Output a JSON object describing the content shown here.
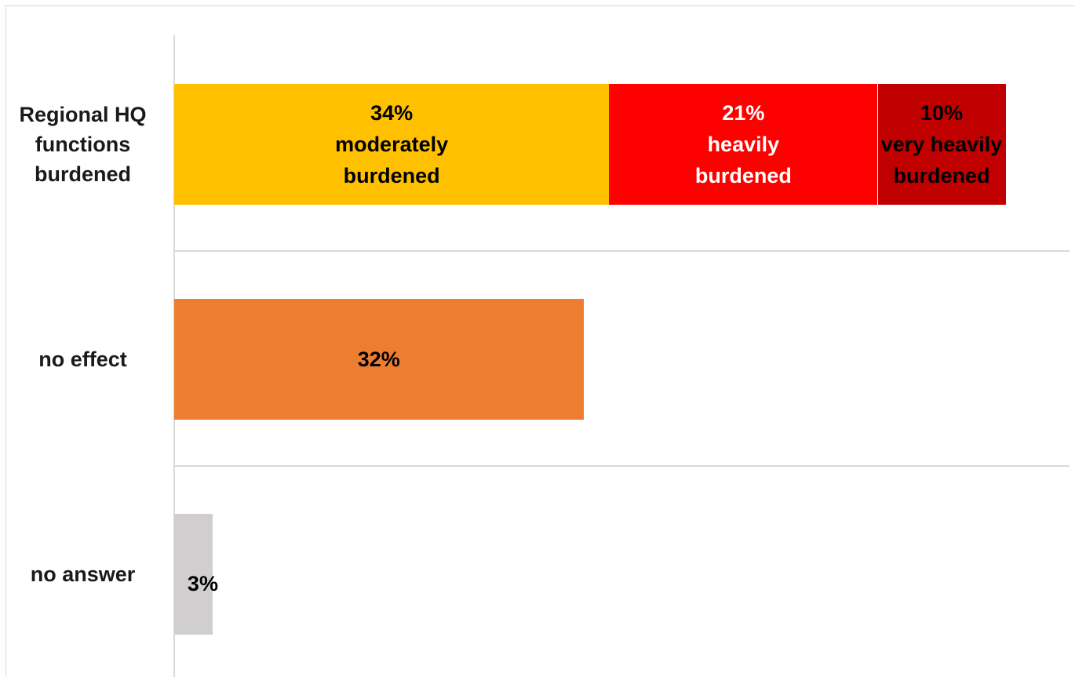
{
  "chart_data": {
    "type": "bar",
    "orientation": "horizontal",
    "stacked": true,
    "categories": [
      "Regional HQ functions burdened",
      "no effect",
      "no answer"
    ],
    "series": [
      {
        "name": "moderately burdened",
        "color": "#ffc000",
        "label_color": "#000000",
        "values": [
          34,
          null,
          null
        ],
        "value_labels": [
          "34%",
          null,
          null
        ]
      },
      {
        "name": "heavily burdened",
        "color": "#ff0000",
        "label_color": "#ffffff",
        "values": [
          21,
          null,
          null
        ],
        "value_labels": [
          "21%",
          null,
          null
        ]
      },
      {
        "name": "very heavily burdened",
        "color": "#c00000",
        "label_color": "#000000",
        "values": [
          10,
          null,
          null
        ],
        "value_labels": [
          "10%",
          null,
          null
        ]
      },
      {
        "color": "#ed7d31",
        "label_color": "#000000",
        "values": [
          null,
          32,
          null
        ],
        "value_labels": [
          null,
          "32%",
          null
        ]
      },
      {
        "color": "#d0cece",
        "label_color": "#000000",
        "values": [
          null,
          null,
          3
        ],
        "value_labels": [
          null,
          null,
          "3%"
        ]
      }
    ],
    "xlim": [
      0,
      70
    ]
  }
}
